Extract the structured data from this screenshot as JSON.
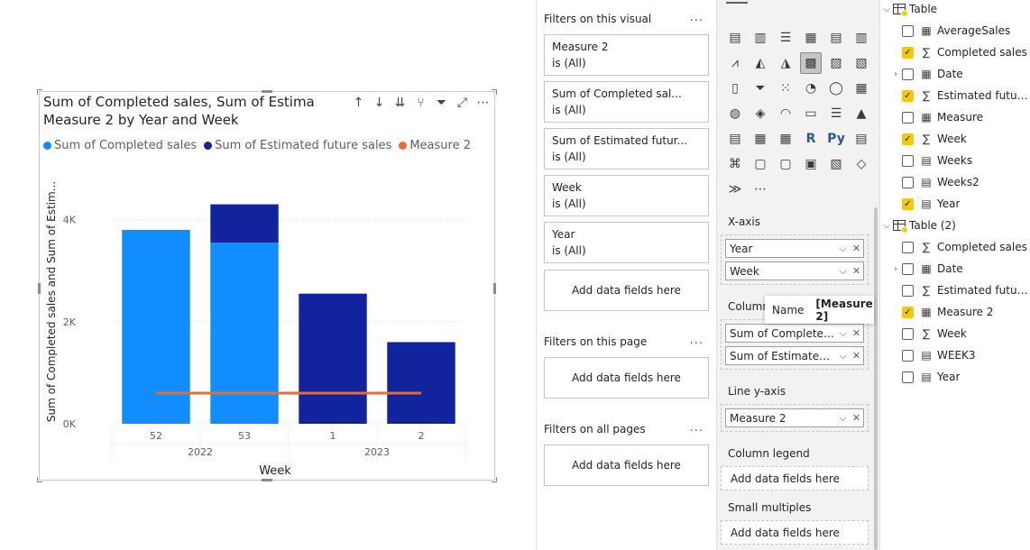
{
  "visual": {
    "title_line1": "Sum of Completed sales, Sum of Estima",
    "title_line2": "Measure 2 by Year and Week",
    "icons": [
      "sort-asc-icon",
      "sort-desc-icon",
      "sort-both-icon",
      "drill-icon",
      "filter-icon",
      "focus-mode-icon",
      "more-icon"
    ]
  },
  "legend": [
    {
      "label": "Sum of Completed sales",
      "color": "#118dff"
    },
    {
      "label": "Sum of Estimated future sales",
      "color": "#12239e"
    },
    {
      "label": "Measure 2",
      "color": "#e66c37"
    }
  ],
  "chart_data": {
    "type": "bar",
    "stacked": true,
    "xlabel": "Week",
    "ylabel": "Sum of Completed sales and Sum of Estim...",
    "ylim": [
      0,
      5000
    ],
    "yticks": [
      0,
      2000,
      4000
    ],
    "ytick_labels": [
      "0K",
      "2K",
      "4K"
    ],
    "categories": [
      "52",
      "53",
      "1",
      "2"
    ],
    "groups": [
      {
        "label": "2022",
        "span": [
          0,
          1
        ]
      },
      {
        "label": "2023",
        "span": [
          2,
          3
        ]
      }
    ],
    "series": [
      {
        "name": "Sum of Completed sales",
        "type": "bar",
        "color": "#118dff",
        "values": [
          3800,
          3550,
          0,
          0
        ]
      },
      {
        "name": "Sum of Estimated future sales",
        "type": "bar",
        "color": "#12239e",
        "values": [
          0,
          750,
          2550,
          1600
        ]
      },
      {
        "name": "Measure 2",
        "type": "line",
        "color": "#e66c37",
        "values": [
          600,
          600,
          600,
          600
        ]
      }
    ],
    "grid": true
  },
  "filters": {
    "visual_title": "Filters on this visual",
    "visual_filters": [
      {
        "name": "Measure 2",
        "state": "is (All)"
      },
      {
        "name": "Sum of Completed sal...",
        "state": "is (All)"
      },
      {
        "name": "Sum of Estimated futur...",
        "state": "is (All)"
      },
      {
        "name": "Week",
        "state": "is (All)"
      },
      {
        "name": "Year",
        "state": "is (All)"
      }
    ],
    "add_fields": "Add data fields here",
    "page_title": "Filters on this page",
    "all_title": "Filters on all pages",
    "more": "..."
  },
  "viz": {
    "gallery": [
      "stacked-bar-icon",
      "stacked-column-icon",
      "clustered-bar-icon",
      "clustered-column-icon",
      "100-bar-icon",
      "100-column-icon",
      "line-icon",
      "area-icon",
      "stacked-area-icon",
      "line-column-icon",
      "line-clustered-icon",
      "ribbon-icon",
      "waterfall-icon",
      "funnel-icon",
      "scatter-icon",
      "pie-icon",
      "donut-icon",
      "treemap-icon",
      "map-icon",
      "filled-map-icon",
      "gauge-icon",
      "card-icon",
      "multirow-card-icon",
      "kpi-icon",
      "slicer-icon",
      "table-icon",
      "matrix-icon",
      "r-visual-icon",
      "python-visual-icon",
      "key-influencers-icon",
      "decomposition-tree-icon",
      "qa-icon",
      "smart-narrative-icon",
      "paginated-report-icon",
      "power-apps-icon",
      "power-automate-icon",
      "power-automate-flow-icon",
      "more-visuals-icon"
    ],
    "gallery_glyphs": [
      "▤",
      "▥",
      "☰",
      "▦",
      "▤",
      "▥",
      "⩘",
      "◭",
      "◮",
      "▩",
      "▨",
      "▧",
      "▯",
      "⏷",
      "⁙",
      "◔",
      "◯",
      "▦",
      "◍",
      "◈",
      "◠",
      "▭",
      "☰",
      "▲",
      "▤",
      "▦",
      "▦",
      "R",
      "Py",
      "▤",
      "⌘",
      "▢",
      "▢",
      "▣",
      "▧",
      "◇",
      "≫",
      "⋯"
    ],
    "x_axis_label": "X-axis",
    "x_axis": [
      "Year",
      "Week"
    ],
    "column_label": "Column",
    "column_y": [
      "Sum of Completed sal...",
      "Sum of Estimated fut..."
    ],
    "line_label": "Line y-axis",
    "line_y": [
      "Measure 2"
    ],
    "legend_label": "Column legend",
    "small_multiples_label": "Small multiples",
    "add_fields": "Add data fields here",
    "tooltip_name": "Name",
    "tooltip_value": "[Measure 2]"
  },
  "fields": {
    "tables": [
      {
        "name": "Table",
        "expanded": true,
        "items": [
          {
            "name": "AverageSales",
            "icon": "calculator-icon",
            "checked": false,
            "expandable": false
          },
          {
            "name": "Completed sales",
            "icon": "sigma-icon",
            "checked": true,
            "expandable": false
          },
          {
            "name": "Date",
            "icon": "calendar-icon",
            "checked": false,
            "expandable": true
          },
          {
            "name": "Estimated future...",
            "icon": "sigma-icon",
            "checked": true,
            "expandable": false
          },
          {
            "name": "Measure",
            "icon": "calculator-icon",
            "checked": false,
            "expandable": false
          },
          {
            "name": "Week",
            "icon": "sigma-icon",
            "checked": true,
            "expandable": false
          },
          {
            "name": "Weeks",
            "icon": "calc-column-icon",
            "checked": false,
            "expandable": false
          },
          {
            "name": "Weeks2",
            "icon": "calc-column-icon",
            "checked": false,
            "expandable": false
          },
          {
            "name": "Year",
            "icon": "calc-column-icon",
            "checked": true,
            "expandable": false
          }
        ]
      },
      {
        "name": "Table (2)",
        "expanded": true,
        "items": [
          {
            "name": "Completed sales",
            "icon": "sigma-icon",
            "checked": false,
            "expandable": false
          },
          {
            "name": "Date",
            "icon": "calendar-icon",
            "checked": false,
            "expandable": true
          },
          {
            "name": "Estimated future...",
            "icon": "sigma-icon",
            "checked": false,
            "expandable": false
          },
          {
            "name": "Measure 2",
            "icon": "calculator-icon",
            "checked": true,
            "expandable": false
          },
          {
            "name": "Week",
            "icon": "sigma-icon",
            "checked": false,
            "expandable": false
          },
          {
            "name": "WEEK3",
            "icon": "calc-column-icon",
            "checked": false,
            "expandable": false
          },
          {
            "name": "Year",
            "icon": "calc-column-icon",
            "checked": false,
            "expandable": false
          }
        ]
      }
    ]
  }
}
